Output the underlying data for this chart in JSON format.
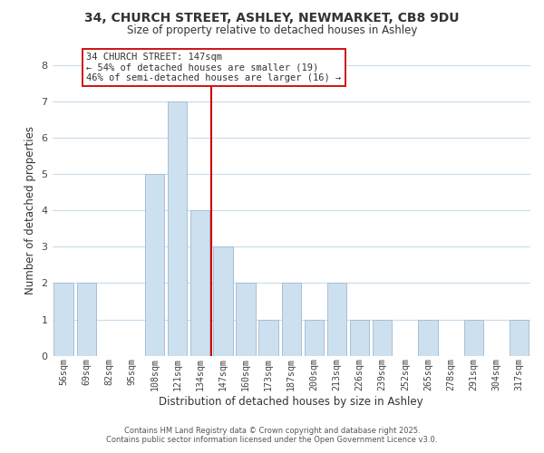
{
  "title_line1": "34, CHURCH STREET, ASHLEY, NEWMARKET, CB8 9DU",
  "title_line2": "Size of property relative to detached houses in Ashley",
  "xlabel": "Distribution of detached houses by size in Ashley",
  "ylabel": "Number of detached properties",
  "bar_labels": [
    "56sqm",
    "69sqm",
    "82sqm",
    "95sqm",
    "108sqm",
    "121sqm",
    "134sqm",
    "147sqm",
    "160sqm",
    "173sqm",
    "187sqm",
    "200sqm",
    "213sqm",
    "226sqm",
    "239sqm",
    "252sqm",
    "265sqm",
    "278sqm",
    "291sqm",
    "304sqm",
    "317sqm"
  ],
  "bar_values": [
    2,
    2,
    0,
    0,
    5,
    7,
    4,
    3,
    2,
    1,
    2,
    1,
    2,
    1,
    1,
    0,
    1,
    0,
    1,
    0,
    1
  ],
  "bar_color": "#cce0f0",
  "bar_edge_color": "#aabfd4",
  "highlight_bar_index": 7,
  "highlight_line_color": "#cc0000",
  "annotation_title": "34 CHURCH STREET: 147sqm",
  "annotation_line2": "← 54% of detached houses are smaller (19)",
  "annotation_line3": "46% of semi-detached houses are larger (16) →",
  "annotation_box_edge_color": "#cc0000",
  "annotation_box_face_color": "#ffffff",
  "ylim": [
    0,
    8
  ],
  "yticks": [
    0,
    1,
    2,
    3,
    4,
    5,
    6,
    7,
    8
  ],
  "footer_line1": "Contains HM Land Registry data © Crown copyright and database right 2025.",
  "footer_line2": "Contains public sector information licensed under the Open Government Licence v3.0.",
  "background_color": "#ffffff",
  "grid_color": "#c8dcea"
}
